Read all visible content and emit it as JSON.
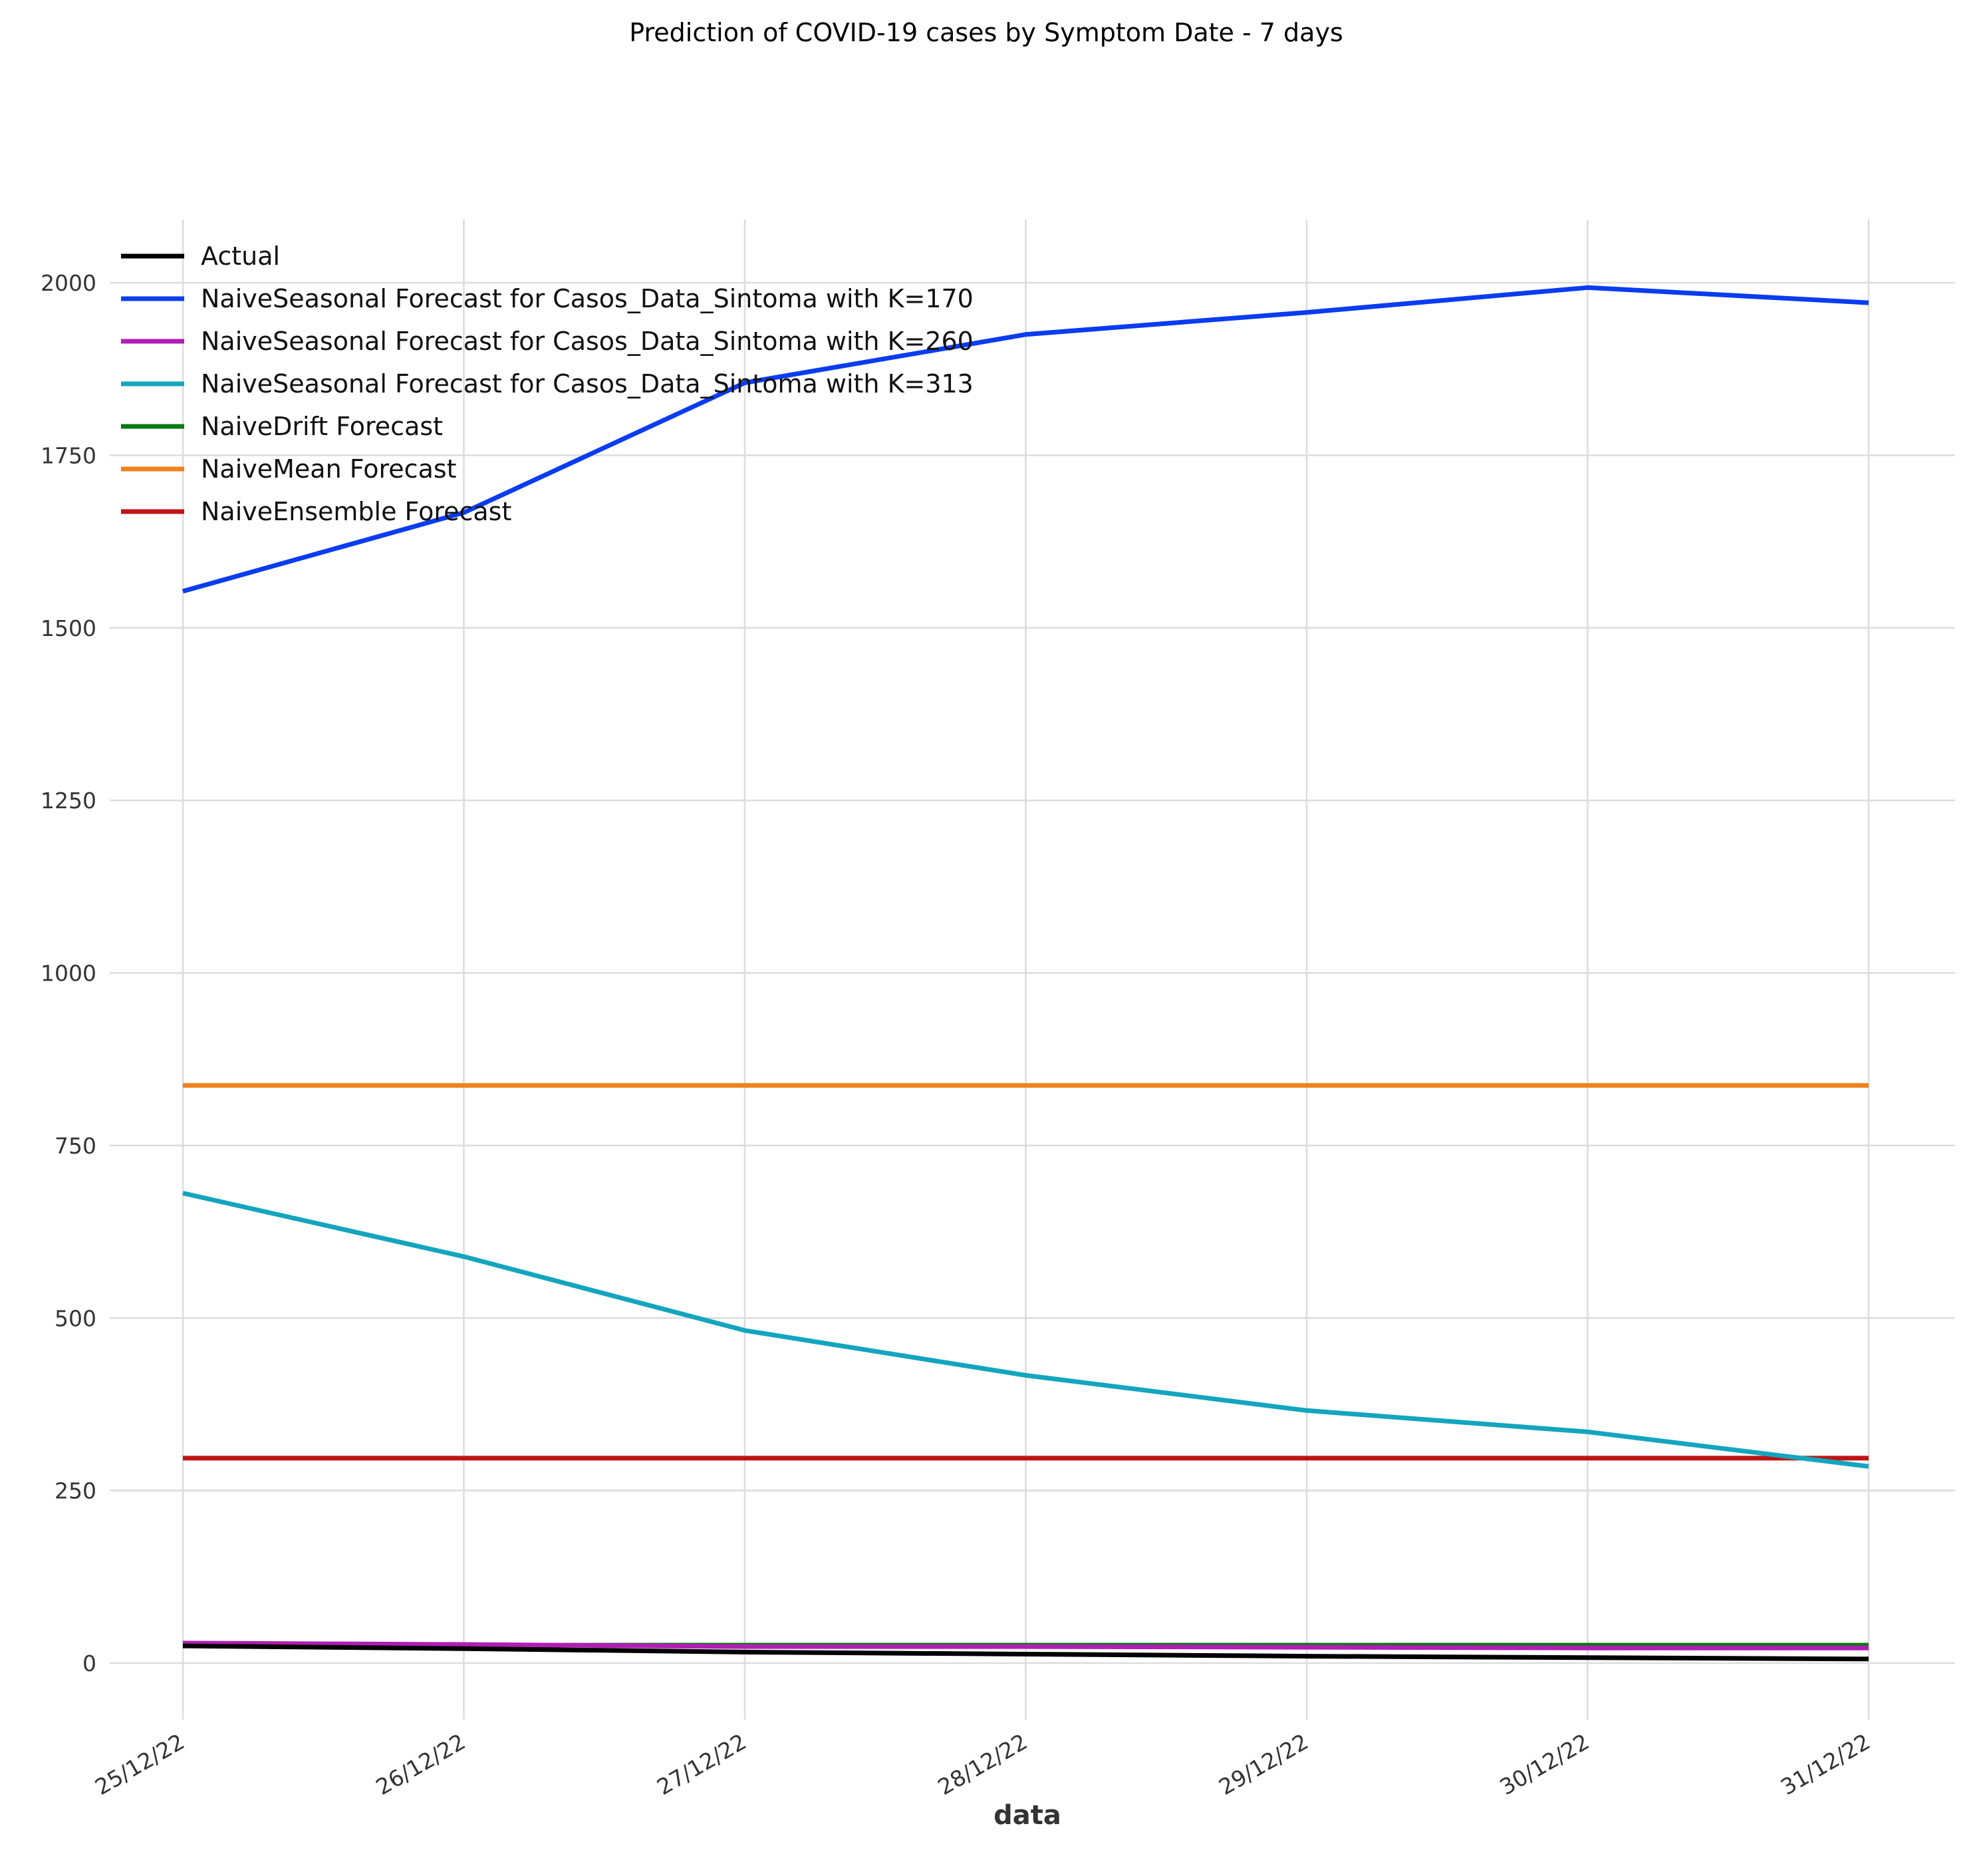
{
  "chart_data": {
    "type": "line",
    "title": "Prediction of COVID-19 cases by Symptom Date - 7 days",
    "xlabel": "data",
    "ylabel": "",
    "x": [
      "25/12/22",
      "26/12/22",
      "27/12/22",
      "28/12/22",
      "29/12/22",
      "30/12/22",
      "31/12/22"
    ],
    "ylim": [
      -90,
      2100
    ],
    "yticks": [
      0,
      250,
      500,
      750,
      1000,
      1250,
      1500,
      1750,
      2000
    ],
    "grid": true,
    "legend_position": "top-left",
    "series": [
      {
        "name": "Actual",
        "color": "#000000",
        "values": [
          25,
          21,
          16,
          13,
          10,
          8,
          6
        ]
      },
      {
        "name": "NaiveSeasonal Forecast for Casos_Data_Sintoma with K=170",
        "color": "#0a3cf0",
        "values": [
          1553,
          1667,
          1855,
          1925,
          1957,
          1993,
          1971
        ]
      },
      {
        "name": "NaiveSeasonal Forecast for Casos_Data_Sintoma with K=260",
        "color": "#b01eb4",
        "values": [
          29,
          27,
          24,
          24,
          23,
          22,
          22
        ]
      },
      {
        "name": "NaiveSeasonal Forecast for Casos_Data_Sintoma with K=313",
        "color": "#14a5be",
        "values": [
          681,
          589,
          482,
          417,
          366,
          335,
          285
        ]
      },
      {
        "name": "NaiveDrift Forecast",
        "color": "#0a7814",
        "values": [
          26,
          26,
          26,
          26,
          26,
          26,
          26
        ]
      },
      {
        "name": "NaiveMean Forecast",
        "color": "#f0821e",
        "values": [
          837,
          837,
          837,
          837,
          837,
          837,
          837
        ]
      },
      {
        "name": "NaiveEnsemble Forecast",
        "color": "#be1414",
        "values": [
          297,
          297,
          297,
          297,
          297,
          297,
          297
        ]
      }
    ]
  }
}
